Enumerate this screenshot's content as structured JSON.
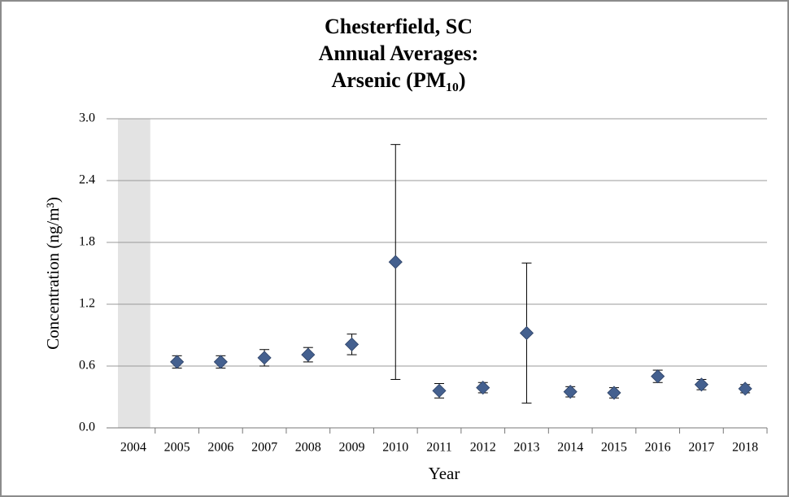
{
  "chart_data": {
    "type": "scatter",
    "title": [
      "Chesterfield, SC",
      "Annual Averages:",
      "Arsenic (PM₁₀)"
    ],
    "x_label": "Year",
    "y_label": "Concentration (ng/m³)",
    "categories": [
      "2004",
      "2005",
      "2006",
      "2007",
      "2008",
      "2009",
      "2010",
      "2011",
      "2012",
      "2013",
      "2014",
      "2015",
      "2016",
      "2017",
      "2018"
    ],
    "series": [
      {
        "color": "#44608f",
        "values": [
          null,
          0.64,
          0.64,
          0.68,
          0.71,
          0.81,
          1.61,
          0.36,
          0.39,
          0.92,
          0.35,
          0.34,
          0.5,
          0.42,
          0.38
        ],
        "errors": [
          null,
          0.06,
          0.06,
          0.08,
          0.07,
          0.1,
          1.14,
          0.07,
          0.05,
          0.68,
          0.05,
          0.05,
          0.06,
          0.05,
          0.04
        ]
      }
    ],
    "ylim": [
      0,
      3
    ],
    "yticks": [
      {
        "value": 0,
        "label": "0.0"
      },
      0.6,
      1.2,
      1.8,
      2.4,
      {
        "value": 3,
        "label": "3.0"
      }
    ],
    "grid": true
  }
}
